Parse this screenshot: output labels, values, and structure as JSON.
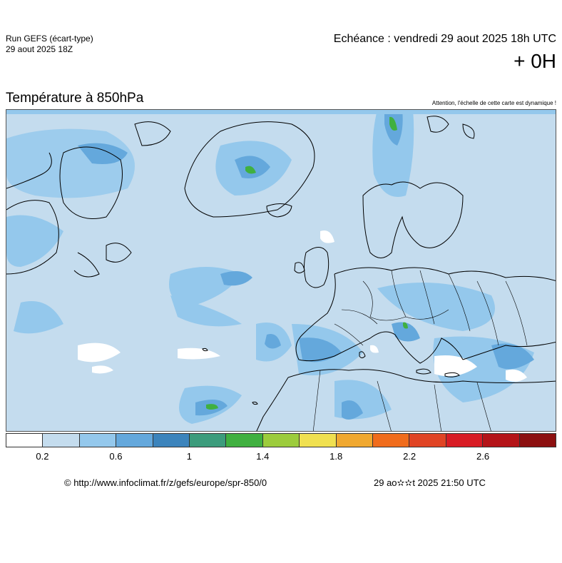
{
  "header": {
    "run_title": "Run GEFS (écart-type)",
    "run_date": "29 aout 2025 18Z",
    "echeance": "Echéance : vendredi 29 aout 2025 18h UTC",
    "offset": "+ 0H"
  },
  "map": {
    "title": "Température à 850hPa",
    "note": "Attention, l'échelle de cette carte est dynamique !",
    "region": "Europe / North Atlantic",
    "land_outline_color": "#000000",
    "ocean_base_color": "#c4dcee"
  },
  "legend": {
    "colors": [
      "#ffffff",
      "#c4dcee",
      "#94c8ec",
      "#64a8dc",
      "#3c84bc",
      "#3c9c7c",
      "#40b040",
      "#9ccc3c",
      "#f0e050",
      "#f0a830",
      "#f06c1c",
      "#e04424",
      "#d81c24",
      "#b41418",
      "#8c1010"
    ],
    "tick_labels": [
      "0.2",
      "0.6",
      "1",
      "1.4",
      "1.8",
      "2.2",
      "2.6"
    ]
  },
  "footer": {
    "copyright": "© http://www.infoclimat.fr/z/gefs/europe/spr-850/0",
    "generated": "29 ao✫✫t 2025 21:50 UTC"
  }
}
